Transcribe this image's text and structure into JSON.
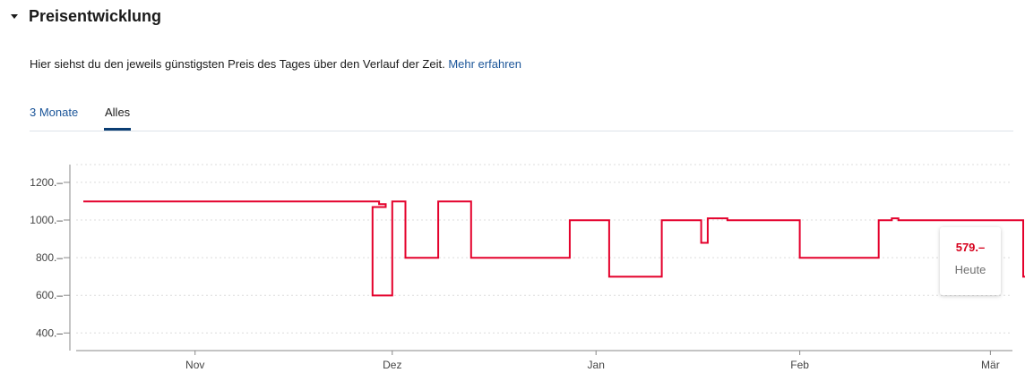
{
  "section": {
    "title": "Preisentwicklung",
    "toggle_icon": "caret-down-icon",
    "description": "Hier siehst du den jeweils günstigsten Preis des Tages über den Verlauf der Zeit.",
    "link_label": "Mehr erfahren"
  },
  "tabs": [
    {
      "label": "3 Monate",
      "active": false
    },
    {
      "label": "Alles",
      "active": true
    }
  ],
  "tooltip": {
    "price": "579.–",
    "label": "Heute"
  },
  "colors": {
    "line": "#e4002b",
    "accent": "#0b3d73",
    "link": "#1b5599"
  },
  "chart_data": {
    "type": "line",
    "step": true,
    "x_axis": {
      "ticks": [
        "Nov",
        "Dez",
        "Jan",
        "Feb",
        "Mär"
      ],
      "tick_dates": [
        "11-01",
        "12-01",
        "01-01",
        "02-01",
        "03-01"
      ]
    },
    "y_axis": {
      "ticks": [
        "1200.–",
        "1000.–",
        "800.–",
        "600.–",
        "400.–"
      ],
      "tick_values": [
        1200,
        1000,
        800,
        600,
        400
      ],
      "range": [
        310,
        1300
      ]
    },
    "grid": true,
    "series": [
      {
        "points": [
          {
            "x": "10-15",
            "y": 1099
          },
          {
            "x": "11-29",
            "y": 1084
          },
          {
            "x": "11-30",
            "y": 1069
          },
          {
            "x": "11-29",
            "y": 1069
          },
          {
            "x": "11-28",
            "y": 599
          },
          {
            "x": "12-01",
            "y": 1099
          },
          {
            "x": "12-03",
            "y": 799
          },
          {
            "x": "12-08",
            "y": 1099
          },
          {
            "x": "12-13",
            "y": 799
          },
          {
            "x": "12-28",
            "y": 999
          },
          {
            "x": "01-03",
            "y": 699
          },
          {
            "x": "01-11",
            "y": 999
          },
          {
            "x": "01-17",
            "y": 879
          },
          {
            "x": "01-18",
            "y": 1009
          },
          {
            "x": "01-21",
            "y": 999
          },
          {
            "x": "02-01",
            "y": 799
          },
          {
            "x": "02-13",
            "y": 999
          },
          {
            "x": "02-15",
            "y": 1009
          },
          {
            "x": "02-16",
            "y": 999
          },
          {
            "x": "03-06",
            "y": 699
          },
          {
            "x": "03-07",
            "y": 579
          }
        ]
      }
    ],
    "current": {
      "x": "03-07",
      "y": 579
    }
  }
}
